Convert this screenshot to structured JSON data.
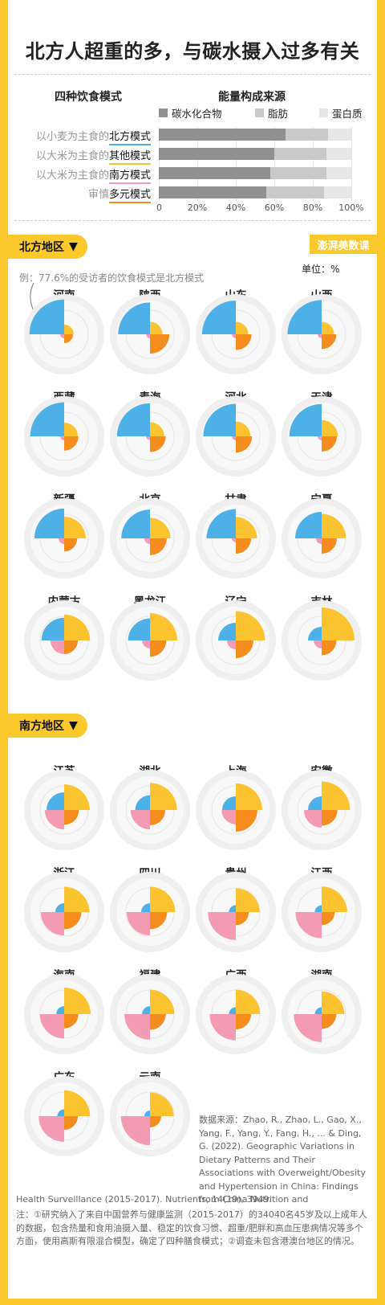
{
  "title": "北方人超重的多，与碳水摄入过多有关",
  "top_chart": {
    "col_left_header": "四种饮食模式",
    "col_right_header": "能量构成来源"
  },
  "chart_data": [
    {
      "type": "bar",
      "stacked": true,
      "orientation": "horizontal",
      "series_names": [
        "碳水化合物",
        "脂肪",
        "蛋白质"
      ],
      "colors": {
        "carb": "#909090",
        "fat": "#c9c9c9",
        "protein": "#e7e7e7"
      },
      "categories": [
        {
          "prefix": "以小麦为主食的",
          "mode": "北方模式",
          "underline": "#4db1e8",
          "carb": 66,
          "fat": 22,
          "protein": 12
        },
        {
          "prefix": "以大米为主食的",
          "mode": "其他模式",
          "underline": "#fbc330",
          "carb": 60,
          "fat": 27,
          "protein": 13
        },
        {
          "prefix": "以大米为主食的",
          "mode": "南方模式",
          "underline": "#f39bb3",
          "carb": 58,
          "fat": 29,
          "protein": 13
        },
        {
          "prefix": "审慎",
          "mode": "多元模式",
          "underline": "#f48c1e",
          "carb": 56,
          "fat": 30,
          "protein": 14
        }
      ],
      "xticks": [
        "0",
        "20%",
        "40%",
        "60%",
        "80%",
        "100%"
      ],
      "xlim": [
        0,
        100
      ]
    },
    {
      "type": "polar-area",
      "description_note": "Each province: four quarter-sector shares of the diet patterns; radius encodes share. Quadrants: top-left 北方模式, top-right 其他模式, bottom-left 南方模式, bottom-right 多元模式.",
      "series_names": [
        "北方模式",
        "其他模式",
        "南方模式",
        "多元模式"
      ],
      "colors": {
        "north": "#4db1e8",
        "other": "#fbc330",
        "south": "#f39bb3",
        "diverse": "#f48c1e"
      },
      "regions": [
        {
          "name": "北方地区",
          "provinces": [
            {
              "name": "河南",
              "north": 77.6,
              "other": 6,
              "south": 1,
              "diverse": 5
            },
            {
              "name": "陕西",
              "north": 65,
              "other": 10,
              "south": 1,
              "diverse": 24
            },
            {
              "name": "山东",
              "north": 73,
              "other": 10,
              "south": 1,
              "diverse": 16
            },
            {
              "name": "山西",
              "north": 75,
              "other": 10,
              "south": 1,
              "diverse": 14
            },
            {
              "name": "西藏",
              "north": 74,
              "other": 12,
              "south": 1,
              "diverse": 13
            },
            {
              "name": "青海",
              "north": 70,
              "other": 13,
              "south": 1,
              "diverse": 16
            },
            {
              "name": "河北",
              "north": 68,
              "other": 14,
              "south": 1,
              "diverse": 17
            },
            {
              "name": "天津",
              "north": 67,
              "other": 17,
              "south": 1,
              "diverse": 15
            },
            {
              "name": "新疆",
              "north": 57,
              "other": 30,
              "south": 2,
              "diverse": 11
            },
            {
              "name": "北京",
              "north": 53,
              "other": 27,
              "south": 2,
              "diverse": 18
            },
            {
              "name": "甘肃",
              "north": 55,
              "other": 29,
              "south": 1,
              "diverse": 15
            },
            {
              "name": "宁夏",
              "north": 45,
              "other": 38,
              "south": 2,
              "diverse": 15
            },
            {
              "name": "内蒙古",
              "north": 33,
              "other": 43,
              "south": 12,
              "diverse": 12
            },
            {
              "name": "黑龙江",
              "north": 31,
              "other": 48,
              "south": 4,
              "diverse": 17
            },
            {
              "name": "辽宁",
              "north": 20,
              "other": 55,
              "south": 5,
              "diverse": 20
            },
            {
              "name": "吉林",
              "north": 12,
              "other": 70,
              "south": 4,
              "diverse": 14
            }
          ]
        },
        {
          "name": "南方地区",
          "provinces": [
            {
              "name": "江苏",
              "north": 20,
              "other": 42,
              "south": 24,
              "diverse": 14
            },
            {
              "name": "湖北",
              "north": 14,
              "other": 47,
              "south": 24,
              "diverse": 15
            },
            {
              "name": "上海",
              "north": 12,
              "other": 45,
              "south": 13,
              "diverse": 30
            },
            {
              "name": "安徽",
              "north": 12,
              "other": 52,
              "south": 20,
              "diverse": 16
            },
            {
              "name": "浙江",
              "north": 5,
              "other": 41,
              "south": 35,
              "diverse": 19
            },
            {
              "name": "四川",
              "north": 5,
              "other": 41,
              "south": 35,
              "diverse": 19
            },
            {
              "name": "贵州",
              "north": 3,
              "other": 36,
              "south": 50,
              "diverse": 11
            },
            {
              "name": "江西",
              "north": 3,
              "other": 42,
              "south": 44,
              "diverse": 11
            },
            {
              "name": "海南",
              "north": 4,
              "other": 45,
              "south": 38,
              "diverse": 13
            },
            {
              "name": "福建",
              "north": 4,
              "other": 38,
              "south": 42,
              "diverse": 16
            },
            {
              "name": "广西",
              "north": 3,
              "other": 38,
              "south": 44,
              "diverse": 15
            },
            {
              "name": "湖南",
              "north": 3,
              "other": 33,
              "south": 50,
              "diverse": 14
            },
            {
              "name": "广东",
              "north": 3,
              "other": 43,
              "south": 42,
              "diverse": 12
            },
            {
              "name": "云南",
              "north": 2,
              "other": 36,
              "south": 54,
              "diverse": 8
            }
          ]
        }
      ]
    }
  ],
  "unit_label": "单位：%",
  "example_text": "例：77.6%的受访者的饮食模式是北方模式",
  "logo_text": "澎湃美数课",
  "source_text": "数据来源：Zhao, R., Zhao, L., Gao, X., Yang, F., Yang, Y., Fang, H., ... & Ding, G. (2022). Geographic Variations in Dietary Patterns and Their Associations with Overweight/Obesity and Hypertension in China: Findings from China Nutrition and",
  "source_tail": "Health Surveillance (2015-2017). Nutrients, 14(19), 3949.",
  "note_text": "注：①研究纳入了来自中国营养与健康监测（2015-2017）的34040名45岁及以上成年人的数据，包含热量和食用油摄入量、稳定的饮食习惯、超重/肥胖和高血压患病情况等多个方面，使用高斯有限混合模型，确定了四种膳食模式；②调查未包含港澳台地区的情况。"
}
